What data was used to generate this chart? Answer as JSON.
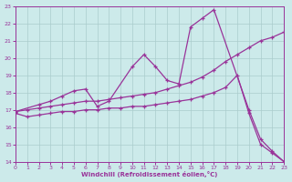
{
  "xlabel": "Windchill (Refroidissement éolien,°C)",
  "xlim": [
    0,
    23
  ],
  "ylim": [
    14,
    23
  ],
  "yticks": [
    14,
    15,
    16,
    17,
    18,
    19,
    20,
    21,
    22,
    23
  ],
  "xticks": [
    0,
    1,
    2,
    3,
    4,
    5,
    6,
    7,
    8,
    9,
    10,
    11,
    12,
    13,
    14,
    15,
    16,
    17,
    18,
    19,
    20,
    21,
    22,
    23
  ],
  "bg_color": "#cceaea",
  "line_color": "#993399",
  "grid_color": "#aacccc",
  "curve1": {
    "x": [
      0,
      2,
      3,
      4,
      5,
      6,
      7,
      8,
      10,
      11,
      12,
      13,
      14,
      15,
      16,
      17,
      20,
      21,
      22,
      23
    ],
    "y": [
      16.9,
      17.3,
      17.5,
      17.8,
      18.1,
      18.2,
      17.2,
      17.5,
      19.5,
      20.2,
      19.5,
      18.7,
      18.5,
      21.8,
      22.3,
      22.8,
      17.0,
      15.3,
      14.6,
      14.0
    ]
  },
  "curve2": {
    "x": [
      0,
      1,
      2,
      3,
      4,
      5,
      6,
      7,
      8,
      9,
      10,
      11,
      12,
      13,
      14,
      15,
      16,
      17,
      18,
      19,
      20,
      21,
      22,
      23
    ],
    "y": [
      16.9,
      17.0,
      17.1,
      17.2,
      17.3,
      17.4,
      17.5,
      17.5,
      17.6,
      17.7,
      17.8,
      17.9,
      18.0,
      18.2,
      18.4,
      18.6,
      18.9,
      19.3,
      19.8,
      20.2,
      20.6,
      21.0,
      21.2,
      21.5
    ]
  },
  "curve3": {
    "x": [
      0,
      1,
      2,
      3,
      4,
      5,
      6,
      7,
      8,
      9,
      10,
      11,
      12,
      13,
      14,
      15,
      16,
      17,
      18,
      19,
      20,
      21,
      22,
      23
    ],
    "y": [
      16.8,
      16.6,
      16.7,
      16.8,
      16.9,
      16.9,
      17.0,
      17.0,
      17.1,
      17.1,
      17.2,
      17.2,
      17.3,
      17.4,
      17.5,
      17.6,
      17.8,
      18.0,
      18.3,
      19.0,
      16.8,
      15.0,
      14.5,
      14.0
    ]
  }
}
